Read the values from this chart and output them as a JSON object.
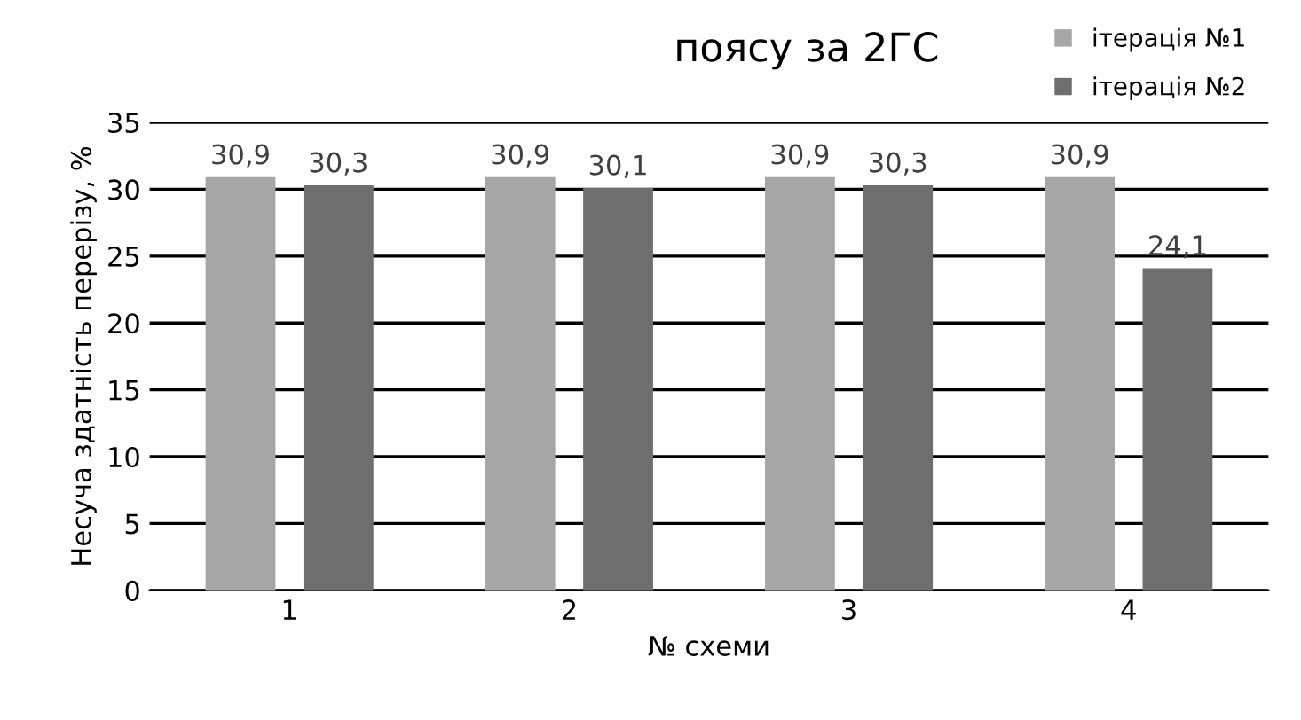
{
  "chart_data": {
    "type": "bar",
    "title": "поясу за 2ГС",
    "xlabel": "№ схеми",
    "ylabel": "Несуча здатність перерізу, %",
    "categories": [
      "1",
      "2",
      "3",
      "4"
    ],
    "series": [
      {
        "name": "ітерація №1",
        "color": "#a6a6a6",
        "values": [
          30.9,
          30.9,
          30.9,
          30.9
        ],
        "value_labels": [
          "30,9",
          "30,9",
          "30,9",
          "30,9"
        ]
      },
      {
        "name": "ітерація №2",
        "color": "#6e6e6e",
        "values": [
          30.3,
          30.1,
          30.3,
          24.1
        ],
        "value_labels": [
          "30,3",
          "30,1",
          "30,3",
          "24,1"
        ]
      }
    ],
    "ylim": [
      0,
      35
    ],
    "yticks": [
      0,
      5,
      10,
      15,
      20,
      25,
      30,
      35
    ],
    "grid": "y",
    "legend": "top right"
  }
}
